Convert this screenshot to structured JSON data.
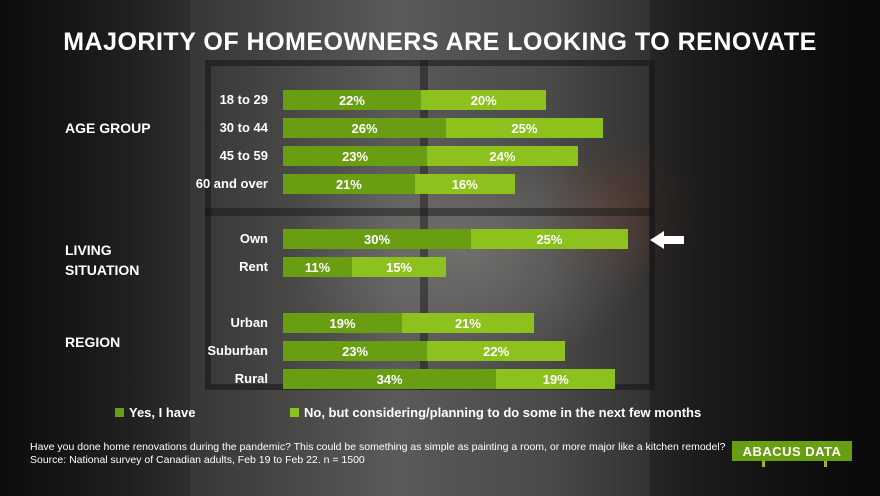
{
  "title": "MAJORITY OF HOMEOWNERS ARE LOOKING TO RENOVATE",
  "groups": [
    {
      "label": "AGE GROUP"
    },
    {
      "label": "LIVING\nSITUATION"
    },
    {
      "label": "REGION"
    }
  ],
  "chart_data": {
    "type": "bar",
    "orientation": "horizontal",
    "stacked": true,
    "title": "MAJORITY OF HOMEOWNERS ARE LOOKING TO RENOVATE",
    "categories": [
      "18 to 29",
      "30 to 44",
      "45 to 59",
      "60 and over",
      "Own",
      "Rent",
      "Urban",
      "Suburban",
      "Rural"
    ],
    "category_groups": [
      "AGE GROUP",
      "AGE GROUP",
      "AGE GROUP",
      "AGE GROUP",
      "LIVING SITUATION",
      "LIVING SITUATION",
      "REGION",
      "REGION",
      "REGION"
    ],
    "series": [
      {
        "name": "Yes, I have",
        "values": [
          22,
          26,
          23,
          21,
          30,
          11,
          19,
          23,
          34
        ],
        "labels": [
          "22%",
          "26%",
          "23%",
          "21%",
          "30%",
          "11%",
          "19%",
          "23%",
          "34%"
        ]
      },
      {
        "name": "No, but considering/planning to do some in the next few months",
        "values": [
          20,
          25,
          24,
          16,
          25,
          15,
          21,
          22,
          19
        ],
        "labels": [
          "20%",
          "25%",
          "24%",
          "16%",
          "25%",
          "15%",
          "21%",
          "22%",
          "19%"
        ]
      }
    ],
    "highlighted_category": "Own",
    "unit": "%",
    "legend_position": "bottom",
    "colors": {
      "yes": "#6a9e12",
      "no": "#8dc21e"
    }
  },
  "legend": {
    "yes_label": "Yes, I have",
    "no_label": "No, but considering/planning to do some in the next few months"
  },
  "footnote": {
    "question": "Have you done home renovations during the pandemic? This could be something as simple as painting a room, or more major like a kitchen remodel?",
    "source": "Source: National survey of Canadian adults, Feb 19 to Feb 22. n = 1500"
  },
  "logo": {
    "word_a": "ABACUS",
    "word_b": "DATA"
  },
  "icons": {
    "highlight_arrow": "arrow-left-icon"
  }
}
